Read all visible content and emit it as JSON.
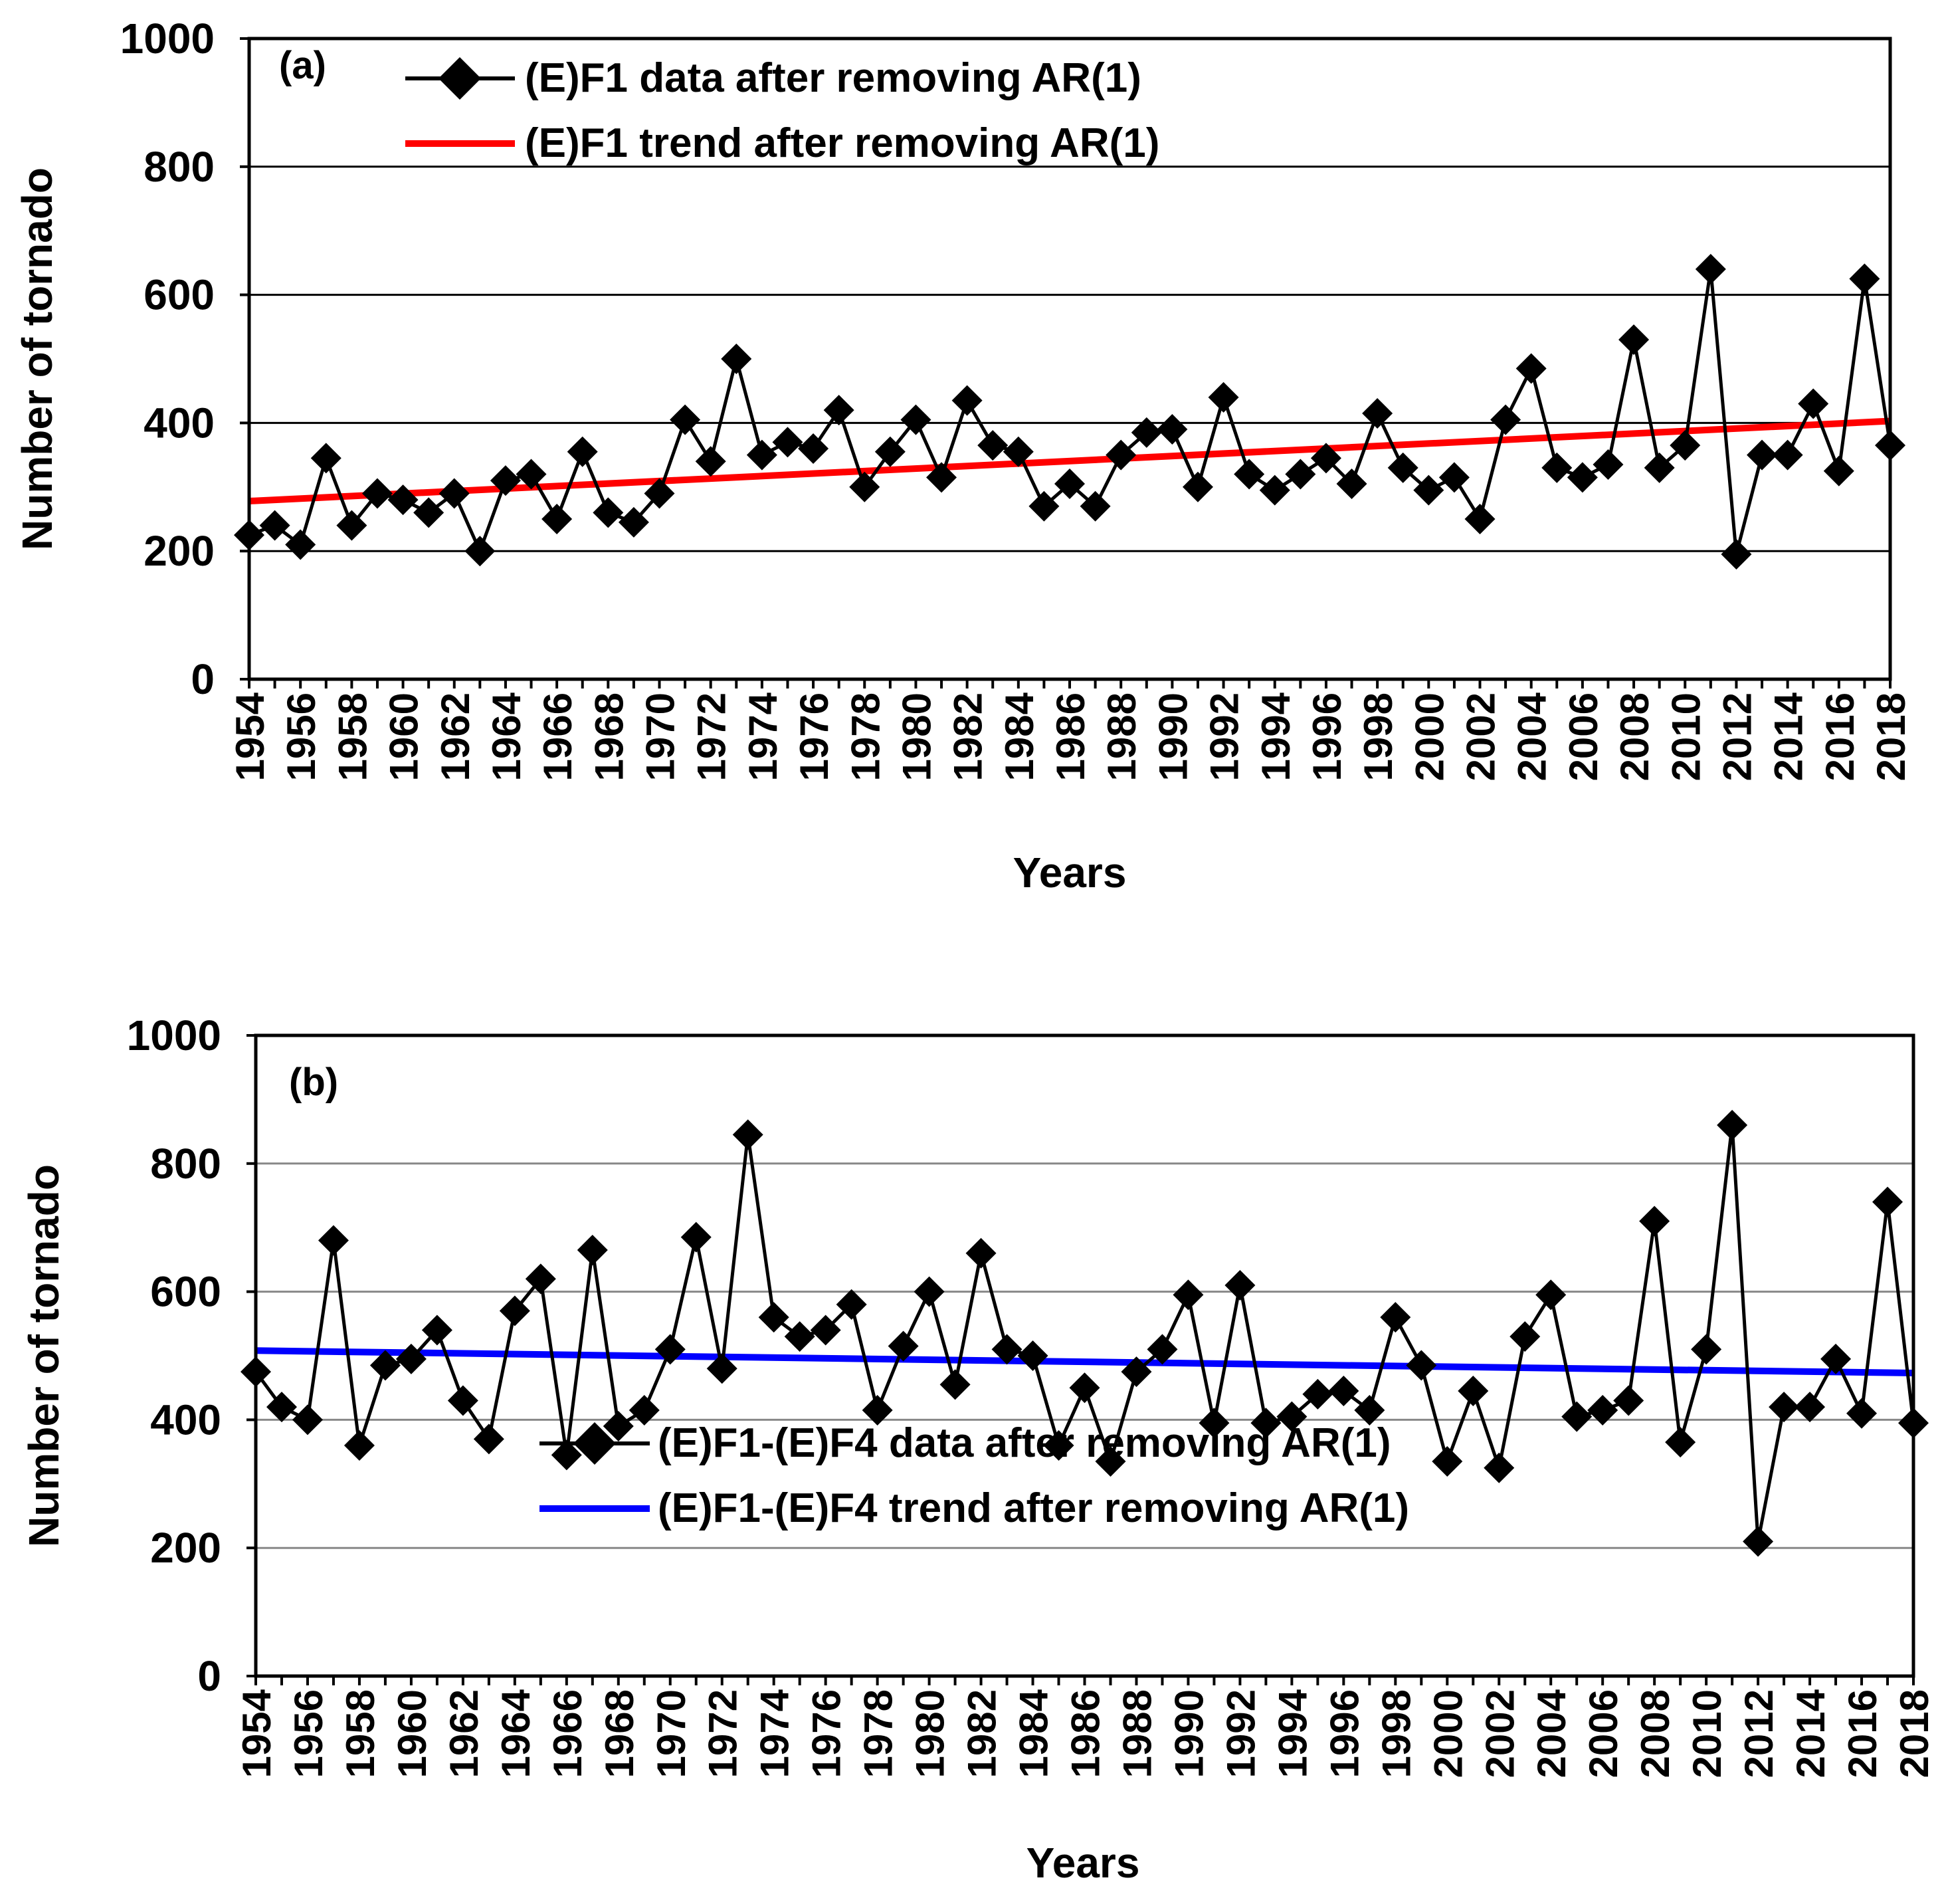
{
  "chart_data": [
    {
      "panel_label": "(a)",
      "type": "line",
      "xlabel": "Years",
      "ylabel": "Number of tornado",
      "ylim": [
        0,
        1000
      ],
      "yticks": [
        "0",
        "200",
        "400",
        "600",
        "800",
        "1000"
      ],
      "xlim": [
        1954,
        2018
      ],
      "xtick_step": 2,
      "grid": true,
      "legend_position": "top",
      "series": [
        {
          "name": "(E)F1 data after removing AR(1)",
          "color": "#000000",
          "marker": "diamond",
          "x_start": 1954,
          "values": [
            225,
            240,
            210,
            345,
            240,
            290,
            280,
            260,
            290,
            200,
            310,
            320,
            250,
            355,
            260,
            245,
            290,
            405,
            340,
            500,
            350,
            370,
            360,
            420,
            300,
            355,
            405,
            315,
            435,
            365,
            355,
            270,
            305,
            270,
            350,
            385,
            390,
            300,
            440,
            320,
            295,
            320,
            345,
            305,
            415,
            330,
            295,
            315,
            250,
            405,
            485,
            330,
            315,
            335,
            530,
            330,
            365,
            640,
            195,
            350,
            350,
            430,
            325,
            625,
            365
          ]
        },
        {
          "name": "(E)F1 trend after removing AR(1)",
          "color": "#ff0000",
          "type": "trend",
          "x": [
            1954,
            2018
          ],
          "values": [
            278,
            403
          ]
        }
      ]
    },
    {
      "panel_label": "(b)",
      "type": "line",
      "xlabel": "Years",
      "ylabel": "Number of tornado",
      "ylim": [
        0,
        1000
      ],
      "yticks": [
        "0",
        "200",
        "400",
        "600",
        "800",
        "1000"
      ],
      "xlim": [
        1954,
        2018
      ],
      "xtick_step": 2,
      "grid": true,
      "legend_position": "bottom-center",
      "series": [
        {
          "name": "(E)F1-(E)F4 data after removing AR(1)",
          "color": "#000000",
          "marker": "diamond",
          "x_start": 1954,
          "values": [
            475,
            420,
            400,
            680,
            360,
            485,
            495,
            540,
            430,
            370,
            570,
            620,
            345,
            665,
            390,
            415,
            510,
            685,
            480,
            845,
            560,
            530,
            540,
            580,
            415,
            515,
            600,
            455,
            660,
            510,
            500,
            360,
            450,
            335,
            475,
            510,
            595,
            395,
            610,
            395,
            405,
            440,
            445,
            415,
            560,
            485,
            335,
            445,
            325,
            530,
            595,
            405,
            415,
            430,
            710,
            365,
            510,
            860,
            210,
            420,
            420,
            495,
            410,
            740,
            395
          ]
        },
        {
          "name": "(E)F1-(E)F4 trend after removing AR(1)",
          "color": "#0000ff",
          "type": "trend",
          "x": [
            1954,
            2018
          ],
          "values": [
            508,
            473
          ]
        }
      ]
    }
  ]
}
